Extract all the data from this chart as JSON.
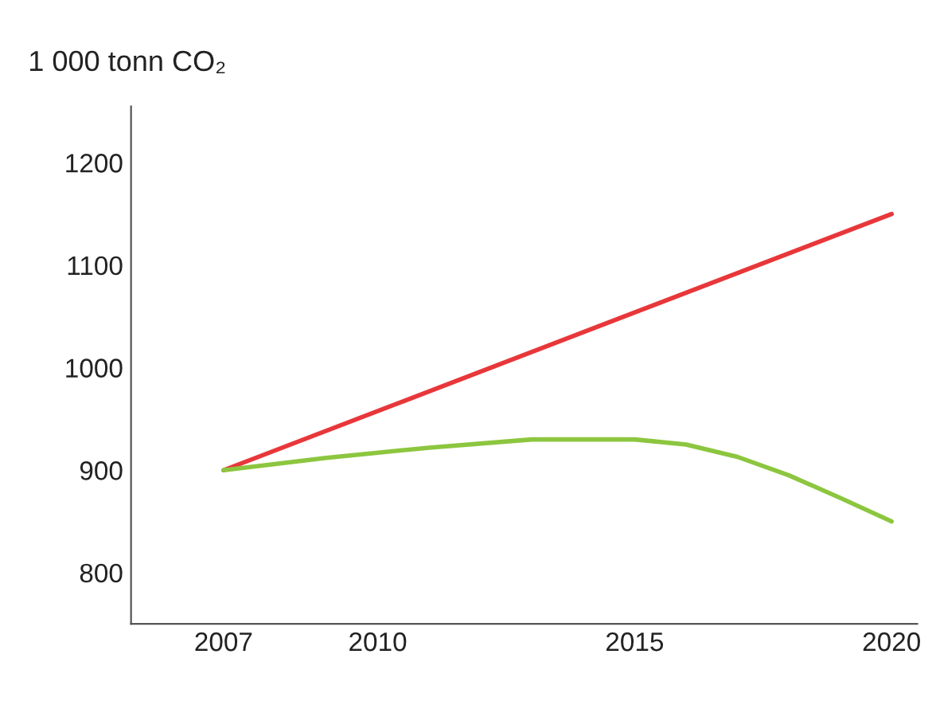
{
  "chart_data": {
    "type": "line",
    "ylabel": "1 000 tonn CO₂",
    "series": [
      {
        "color": "#e8373a",
        "x": [
          2007,
          2020
        ],
        "values": [
          900,
          1150
        ]
      },
      {
        "color": "#8cc63f",
        "x": [
          2007,
          2009,
          2011,
          2013,
          2015,
          2016,
          2017,
          2018,
          2019,
          2020
        ],
        "values": [
          900,
          912,
          922,
          930,
          930,
          925,
          913,
          895,
          873,
          850
        ]
      }
    ],
    "xlim": [
      2005.2,
      2020.5
    ],
    "xticks": [
      2007,
      2010,
      2015,
      2020
    ],
    "ylim": [
      750,
      1255
    ],
    "yticks": [
      800,
      900,
      1000,
      1100,
      1200
    ],
    "grid": false,
    "legend": false,
    "marker": "none",
    "line_style": "solid"
  }
}
